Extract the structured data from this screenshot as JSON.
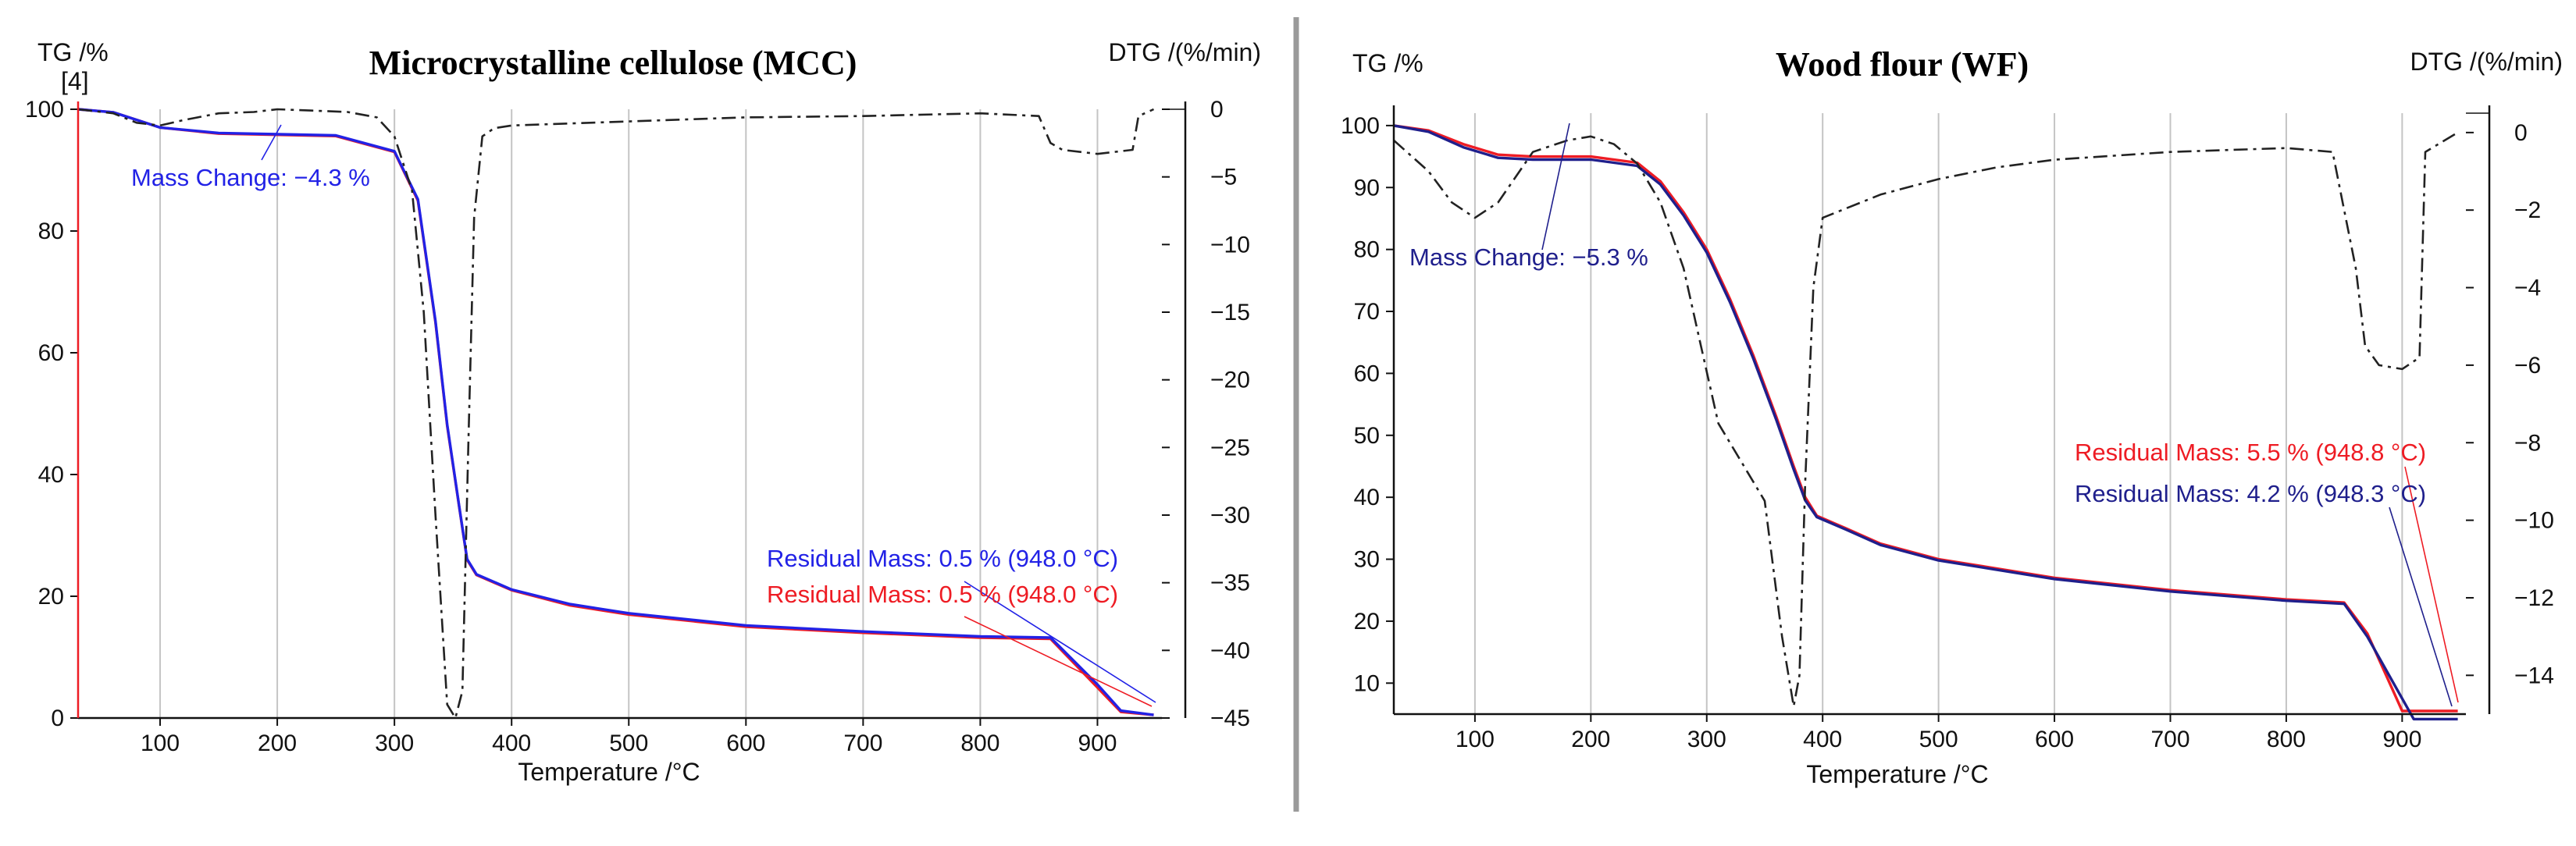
{
  "colors": {
    "tg_red": "#ee1c24",
    "tg_blue": "#2222e6",
    "tg_navy": "#1f1f8c",
    "dtg": "#222222",
    "grid": "#c4c4c4",
    "divider": "#9a9a9a"
  },
  "chart_data": [
    {
      "type": "line",
      "title": "Microcrystalline cellulose (MCC)",
      "xlabel": "Temperature /°C",
      "ylabel": "TG /%",
      "y2label": "DTG /(%/min)",
      "corner_label": "[4]",
      "xlim": [
        30,
        955
      ],
      "ylim": [
        0,
        100
      ],
      "y2lim": [
        -45,
        0
      ],
      "xticks": [
        100,
        200,
        300,
        400,
        500,
        600,
        700,
        800,
        900
      ],
      "yticks": [
        0,
        20,
        40,
        60,
        80,
        100
      ],
      "y2ticks": [
        0,
        -5,
        -10,
        -15,
        -20,
        -25,
        -30,
        -35,
        -40,
        -45
      ],
      "y2ticklabels": [
        "0",
        "−5",
        "−10",
        "−15",
        "−20",
        "−25",
        "−30",
        "−35",
        "−40",
        "−45"
      ],
      "series": [
        {
          "name": "TG red",
          "axis": "left",
          "color": "#ee1c24",
          "points": [
            [
              30,
              100
            ],
            [
              60,
              99.5
            ],
            [
              100,
              97
            ],
            [
              150,
              96
            ],
            [
              250,
              95.6
            ],
            [
              300,
              93
            ],
            [
              320,
              85
            ],
            [
              335,
              65
            ],
            [
              345,
              48
            ],
            [
              355,
              35
            ],
            [
              362,
              26
            ],
            [
              370,
              23.5
            ],
            [
              400,
              21
            ],
            [
              450,
              18.5
            ],
            [
              500,
              17
            ],
            [
              600,
              15
            ],
            [
              700,
              14
            ],
            [
              800,
              13.2
            ],
            [
              860,
              13
            ],
            [
              900,
              5
            ],
            [
              920,
              1
            ],
            [
              948,
              0.5
            ]
          ]
        },
        {
          "name": "TG blue",
          "axis": "left",
          "color": "#2222e6",
          "points": [
            [
              30,
              100
            ],
            [
              60,
              99.5
            ],
            [
              100,
              97
            ],
            [
              150,
              96.1
            ],
            [
              250,
              95.7
            ],
            [
              300,
              93.1
            ],
            [
              320,
              85.2
            ],
            [
              335,
              65.2
            ],
            [
              345,
              48.2
            ],
            [
              355,
              35.1
            ],
            [
              362,
              26.1
            ],
            [
              370,
              23.6
            ],
            [
              400,
              21.1
            ],
            [
              450,
              18.7
            ],
            [
              500,
              17.2
            ],
            [
              600,
              15.2
            ],
            [
              700,
              14.2
            ],
            [
              800,
              13.4
            ],
            [
              860,
              13.2
            ],
            [
              900,
              5.5
            ],
            [
              920,
              1.2
            ],
            [
              948,
              0.5
            ]
          ]
        },
        {
          "name": "DTG",
          "axis": "right",
          "color": "#222222",
          "dash": true,
          "points": [
            [
              30,
              0
            ],
            [
              60,
              -0.3
            ],
            [
              80,
              -1
            ],
            [
              100,
              -1.2
            ],
            [
              120,
              -0.8
            ],
            [
              150,
              -0.3
            ],
            [
              180,
              -0.2
            ],
            [
              200,
              0
            ],
            [
              230,
              -0.1
            ],
            [
              260,
              -0.2
            ],
            [
              285,
              -0.6
            ],
            [
              300,
              -2
            ],
            [
              315,
              -6
            ],
            [
              325,
              -15
            ],
            [
              335,
              -30
            ],
            [
              345,
              -44
            ],
            [
              352,
              -45
            ],
            [
              358,
              -43
            ],
            [
              363,
              -25
            ],
            [
              368,
              -8
            ],
            [
              375,
              -2
            ],
            [
              385,
              -1.4
            ],
            [
              400,
              -1.2
            ],
            [
              500,
              -0.9
            ],
            [
              600,
              -0.6
            ],
            [
              700,
              -0.5
            ],
            [
              800,
              -0.3
            ],
            [
              850,
              -0.5
            ],
            [
              860,
              -2.5
            ],
            [
              870,
              -3
            ],
            [
              900,
              -3.3
            ],
            [
              930,
              -3
            ],
            [
              935,
              -0.5
            ],
            [
              948,
              0
            ]
          ]
        }
      ],
      "annotations": [
        {
          "text": "Mass Change: −4.3 %",
          "color": "#2222e6"
        },
        {
          "text": "Residual Mass: 0.5 % (948.0 °C)",
          "color": "#2222e6"
        },
        {
          "text": "Residual Mass: 0.5 % (948.0 °C)",
          "color": "#ee1c24"
        }
      ]
    },
    {
      "type": "line",
      "title": "Wood flour (WF)",
      "xlabel": "Temperature /°C",
      "ylabel": "TG /%",
      "y2label": "DTG /(%/min)",
      "xlim": [
        30,
        955
      ],
      "ylim": [
        5,
        102
      ],
      "y2lim": [
        -15,
        0.5
      ],
      "xticks": [
        100,
        200,
        300,
        400,
        500,
        600,
        700,
        800,
        900
      ],
      "yticks": [
        10,
        20,
        30,
        40,
        50,
        60,
        70,
        80,
        90,
        100
      ],
      "y2ticks": [
        0,
        -2,
        -4,
        -6,
        -8,
        -10,
        -12,
        -14
      ],
      "y2ticklabels": [
        "0",
        "−2",
        "−4",
        "−6",
        "−8",
        "−10",
        "−12",
        "−14"
      ],
      "series": [
        {
          "name": "TG red",
          "axis": "left",
          "color": "#ee1c24",
          "points": [
            [
              30,
              100
            ],
            [
              60,
              99.2
            ],
            [
              90,
              97
            ],
            [
              120,
              95.3
            ],
            [
              150,
              95
            ],
            [
              200,
              95
            ],
            [
              240,
              94
            ],
            [
              260,
              91
            ],
            [
              280,
              86
            ],
            [
              300,
              80
            ],
            [
              320,
              72
            ],
            [
              340,
              63
            ],
            [
              360,
              53
            ],
            [
              375,
              45
            ],
            [
              385,
              40
            ],
            [
              395,
              37
            ],
            [
              420,
              35
            ],
            [
              450,
              32.5
            ],
            [
              500,
              30
            ],
            [
              600,
              27
            ],
            [
              700,
              25
            ],
            [
              800,
              23.5
            ],
            [
              850,
              23
            ],
            [
              870,
              18
            ],
            [
              900,
              5.5
            ],
            [
              948,
              5.5
            ]
          ]
        },
        {
          "name": "TG navy",
          "axis": "left",
          "color": "#1f1f8c",
          "points": [
            [
              30,
              100
            ],
            [
              60,
              99
            ],
            [
              90,
              96.5
            ],
            [
              120,
              94.8
            ],
            [
              150,
              94.5
            ],
            [
              200,
              94.5
            ],
            [
              240,
              93.5
            ],
            [
              260,
              90.5
            ],
            [
              280,
              85.5
            ],
            [
              300,
              79.5
            ],
            [
              320,
              71.5
            ],
            [
              340,
              62.5
            ],
            [
              360,
              52.5
            ],
            [
              375,
              44.5
            ],
            [
              385,
              39.5
            ],
            [
              395,
              36.8
            ],
            [
              420,
              34.8
            ],
            [
              450,
              32.3
            ],
            [
              500,
              29.8
            ],
            [
              600,
              26.8
            ],
            [
              700,
              24.8
            ],
            [
              800,
              23.3
            ],
            [
              850,
              22.8
            ],
            [
              870,
              17.5
            ],
            [
              910,
              4.2
            ],
            [
              948,
              4.2
            ]
          ]
        },
        {
          "name": "DTG",
          "axis": "right",
          "color": "#222222",
          "dash": true,
          "points": [
            [
              30,
              -0.2
            ],
            [
              60,
              -1
            ],
            [
              80,
              -1.8
            ],
            [
              100,
              -2.2
            ],
            [
              120,
              -1.8
            ],
            [
              150,
              -0.5
            ],
            [
              180,
              -0.2
            ],
            [
              200,
              -0.1
            ],
            [
              220,
              -0.3
            ],
            [
              240,
              -0.8
            ],
            [
              260,
              -1.8
            ],
            [
              280,
              -3.5
            ],
            [
              295,
              -5.5
            ],
            [
              310,
              -7.5
            ],
            [
              330,
              -8.5
            ],
            [
              350,
              -9.5
            ],
            [
              365,
              -13
            ],
            [
              375,
              -14.8
            ],
            [
              380,
              -14
            ],
            [
              385,
              -9
            ],
            [
              392,
              -4
            ],
            [
              400,
              -2.2
            ],
            [
              450,
              -1.6
            ],
            [
              500,
              -1.2
            ],
            [
              550,
              -0.9
            ],
            [
              600,
              -0.7
            ],
            [
              700,
              -0.5
            ],
            [
              800,
              -0.4
            ],
            [
              840,
              -0.5
            ],
            [
              850,
              -2
            ],
            [
              860,
              -3.5
            ],
            [
              868,
              -5.5
            ],
            [
              880,
              -6
            ],
            [
              900,
              -6.1
            ],
            [
              915,
              -5.8
            ],
            [
              920,
              -0.5
            ],
            [
              948,
              0
            ]
          ]
        }
      ],
      "annotations": [
        {
          "text": "Mass Change: −5.3 %",
          "color": "#1f1f8c"
        },
        {
          "text": "Residual Mass: 5.5 % (948.8 °C)",
          "color": "#ee1c24"
        },
        {
          "text": "Residual Mass: 4.2 % (948.3 °C)",
          "color": "#1f1f8c"
        }
      ]
    }
  ]
}
